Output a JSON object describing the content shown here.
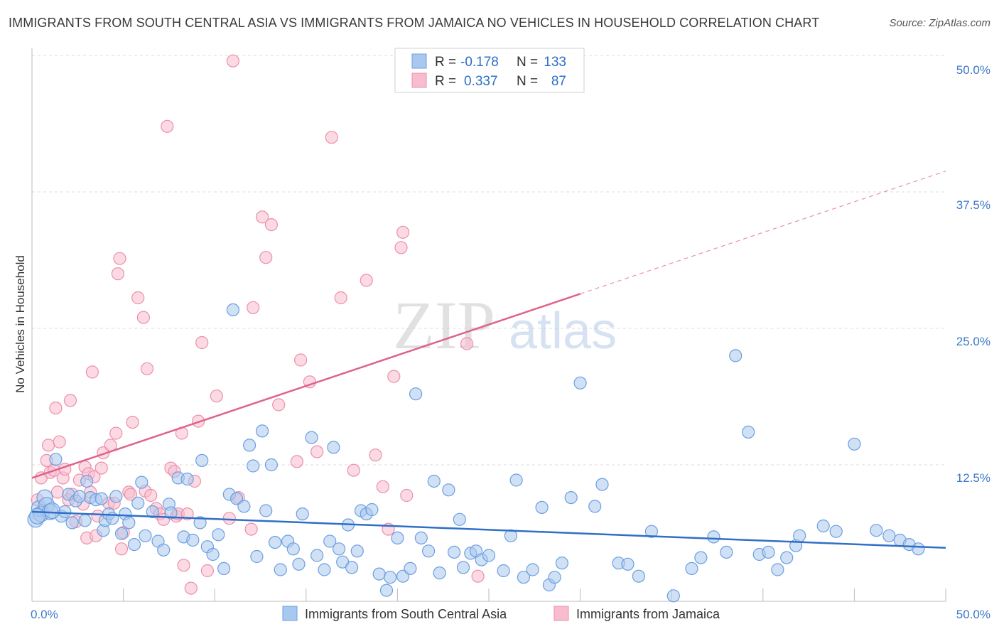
{
  "header": {
    "title": "IMMIGRANTS FROM SOUTH CENTRAL ASIA VS IMMIGRANTS FROM JAMAICA NO VEHICLES IN HOUSEHOLD CORRELATION CHART",
    "source": "Source: ZipAtlas.com"
  },
  "watermark": {
    "zip": "ZIP",
    "atlas": "atlas"
  },
  "colors": {
    "blue_fill": "#a9c8ef",
    "blue_stroke": "#6a9fe0",
    "blue_line": "#2f6fc6",
    "pink_fill": "#f7bccd",
    "pink_stroke": "#ec8fab",
    "pink_line": "#e0628a",
    "tick_text": "#3d78c8",
    "grid": "#dcdcdc"
  },
  "legend": {
    "rows": [
      {
        "r_label": "R =",
        "r_value": "-0.178",
        "n_label": "N =",
        "n_value": "133",
        "series": "blue"
      },
      {
        "r_label": "R =",
        "r_value": "0.337",
        "n_label": "N =",
        "n_value": "87",
        "series": "pink"
      }
    ]
  },
  "chart_data": {
    "type": "scatter",
    "title": "IMMIGRANTS FROM SOUTH CENTRAL ASIA VS IMMIGRANTS FROM JAMAICA NO VEHICLES IN HOUSEHOLD CORRELATION CHART",
    "ylabel": "No Vehicles in Household",
    "xlim": [
      0,
      50
    ],
    "ylim": [
      0,
      50
    ],
    "x_tick_labels": [
      "0.0%",
      "50.0%"
    ],
    "y_tick_labels": [
      "12.5%",
      "25.0%",
      "37.5%",
      "50.0%"
    ],
    "y_ticks": [
      12.5,
      25.0,
      37.5,
      50.0
    ],
    "grid": true,
    "legend_position": "top-center",
    "series": [
      {
        "name": "Immigrants from South Central Asia",
        "color": "blue",
        "R": -0.178,
        "N": 133,
        "trend": {
          "x0": 0,
          "y0": 8.2,
          "x1": 50,
          "y1": 4.9,
          "dashed_from": null
        },
        "points": [
          [
            0.2,
            7.5
          ],
          [
            0.4,
            8.5
          ],
          [
            0.5,
            8.0
          ],
          [
            0.7,
            9.5
          ],
          [
            0.8,
            8.8
          ],
          [
            1.0,
            8.2
          ],
          [
            1.3,
            13.0
          ],
          [
            1.6,
            7.8
          ],
          [
            1.8,
            8.2
          ],
          [
            2.0,
            9.8
          ],
          [
            2.2,
            7.2
          ],
          [
            2.4,
            9.2
          ],
          [
            2.6,
            9.6
          ],
          [
            3.0,
            11.0
          ],
          [
            3.2,
            9.5
          ],
          [
            3.5,
            9.3
          ],
          [
            3.8,
            9.4
          ],
          [
            3.9,
            6.5
          ],
          [
            4.0,
            7.4
          ],
          [
            4.2,
            8.0
          ],
          [
            4.4,
            7.6
          ],
          [
            4.6,
            9.6
          ],
          [
            4.9,
            6.2
          ],
          [
            5.1,
            8.0
          ],
          [
            5.3,
            7.2
          ],
          [
            5.6,
            5.2
          ],
          [
            5.8,
            9.0
          ],
          [
            6.0,
            10.9
          ],
          [
            6.2,
            6.0
          ],
          [
            6.6,
            8.2
          ],
          [
            6.9,
            5.5
          ],
          [
            7.2,
            4.7
          ],
          [
            7.5,
            8.9
          ],
          [
            7.6,
            8.1
          ],
          [
            8.0,
            11.3
          ],
          [
            8.3,
            5.9
          ],
          [
            8.5,
            11.2
          ],
          [
            8.8,
            5.6
          ],
          [
            9.2,
            7.2
          ],
          [
            9.3,
            12.9
          ],
          [
            9.6,
            5.0
          ],
          [
            9.9,
            4.3
          ],
          [
            10.2,
            6.1
          ],
          [
            10.5,
            3.0
          ],
          [
            10.8,
            9.8
          ],
          [
            11.0,
            26.7
          ],
          [
            11.2,
            9.4
          ],
          [
            11.6,
            8.7
          ],
          [
            11.9,
            14.3
          ],
          [
            12.1,
            12.4
          ],
          [
            12.3,
            4.1
          ],
          [
            12.6,
            15.6
          ],
          [
            12.8,
            8.3
          ],
          [
            13.1,
            12.5
          ],
          [
            13.3,
            5.4
          ],
          [
            13.6,
            2.9
          ],
          [
            14.0,
            5.5
          ],
          [
            14.3,
            4.8
          ],
          [
            14.6,
            3.4
          ],
          [
            14.8,
            8.0
          ],
          [
            15.3,
            15.0
          ],
          [
            15.6,
            4.2
          ],
          [
            16.0,
            2.9
          ],
          [
            16.3,
            5.5
          ],
          [
            16.5,
            14.1
          ],
          [
            16.8,
            4.8
          ],
          [
            17.0,
            3.6
          ],
          [
            17.3,
            7.0
          ],
          [
            17.5,
            3.1
          ],
          [
            17.8,
            4.6
          ],
          [
            18.0,
            8.3
          ],
          [
            18.3,
            8.0
          ],
          [
            18.6,
            8.4
          ],
          [
            19.0,
            2.5
          ],
          [
            19.4,
            1.0
          ],
          [
            19.6,
            2.2
          ],
          [
            20.0,
            5.8
          ],
          [
            20.3,
            2.3
          ],
          [
            20.7,
            3.0
          ],
          [
            21.0,
            19.0
          ],
          [
            21.3,
            5.8
          ],
          [
            21.7,
            4.6
          ],
          [
            22.0,
            11.0
          ],
          [
            22.3,
            2.6
          ],
          [
            22.8,
            10.2
          ],
          [
            23.1,
            4.5
          ],
          [
            23.4,
            7.5
          ],
          [
            23.6,
            3.1
          ],
          [
            24.0,
            4.4
          ],
          [
            24.3,
            4.6
          ],
          [
            24.6,
            3.8
          ],
          [
            25.0,
            4.2
          ],
          [
            25.8,
            2.8
          ],
          [
            26.2,
            6.0
          ],
          [
            26.5,
            11.1
          ],
          [
            26.9,
            2.2
          ],
          [
            27.4,
            2.9
          ],
          [
            27.9,
            8.6
          ],
          [
            28.3,
            1.5
          ],
          [
            28.6,
            2.2
          ],
          [
            29.0,
            3.5
          ],
          [
            29.5,
            9.5
          ],
          [
            30.0,
            20.0
          ],
          [
            30.8,
            8.7
          ],
          [
            31.2,
            10.7
          ],
          [
            32.1,
            3.5
          ],
          [
            32.6,
            3.4
          ],
          [
            33.2,
            2.3
          ],
          [
            33.9,
            6.4
          ],
          [
            35.1,
            0.5
          ],
          [
            36.1,
            3.0
          ],
          [
            36.6,
            4.0
          ],
          [
            37.3,
            5.9
          ],
          [
            38.0,
            4.5
          ],
          [
            38.5,
            22.5
          ],
          [
            39.2,
            15.5
          ],
          [
            39.8,
            4.3
          ],
          [
            40.3,
            4.5
          ],
          [
            40.8,
            2.9
          ],
          [
            41.3,
            4.0
          ],
          [
            41.8,
            5.1
          ],
          [
            42.0,
            6.0
          ],
          [
            43.3,
            6.9
          ],
          [
            44.0,
            6.4
          ],
          [
            45.0,
            14.4
          ],
          [
            46.2,
            6.5
          ],
          [
            46.9,
            6.0
          ],
          [
            47.5,
            5.6
          ],
          [
            48.0,
            5.2
          ],
          [
            48.5,
            4.8
          ],
          [
            0.3,
            7.8
          ],
          [
            1.1,
            8.3
          ],
          [
            2.9,
            7.4
          ]
        ]
      },
      {
        "name": "Immigrants from Jamaica",
        "color": "pink",
        "R": 0.337,
        "N": 87,
        "trend": {
          "x0": 0,
          "y0": 11.3,
          "x1": 50,
          "y1": 39.4,
          "dashed_from": 30.0
        },
        "points": [
          [
            0.3,
            9.3
          ],
          [
            0.5,
            11.3
          ],
          [
            0.6,
            8.3
          ],
          [
            0.8,
            12.9
          ],
          [
            0.9,
            14.3
          ],
          [
            1.0,
            11.8
          ],
          [
            1.2,
            12.0
          ],
          [
            1.3,
            17.7
          ],
          [
            1.5,
            14.6
          ],
          [
            1.7,
            11.3
          ],
          [
            1.8,
            12.1
          ],
          [
            2.0,
            9.3
          ],
          [
            2.1,
            18.4
          ],
          [
            2.2,
            9.8
          ],
          [
            2.4,
            7.3
          ],
          [
            2.6,
            11.1
          ],
          [
            2.8,
            8.9
          ],
          [
            2.9,
            12.3
          ],
          [
            3.0,
            5.8
          ],
          [
            3.1,
            11.7
          ],
          [
            3.2,
            10.0
          ],
          [
            3.3,
            21.0
          ],
          [
            3.4,
            11.4
          ],
          [
            3.5,
            6.0
          ],
          [
            3.6,
            7.8
          ],
          [
            3.8,
            12.2
          ],
          [
            3.9,
            13.6
          ],
          [
            4.2,
            9.0
          ],
          [
            4.3,
            14.3
          ],
          [
            4.5,
            9.0
          ],
          [
            4.6,
            15.4
          ],
          [
            4.7,
            30.0
          ],
          [
            4.8,
            31.4
          ],
          [
            4.9,
            4.8
          ],
          [
            5.0,
            6.3
          ],
          [
            5.3,
            10.0
          ],
          [
            5.4,
            9.8
          ],
          [
            5.5,
            16.4
          ],
          [
            5.8,
            27.8
          ],
          [
            6.1,
            26.0
          ],
          [
            6.2,
            10.1
          ],
          [
            6.3,
            21.3
          ],
          [
            6.5,
            9.7
          ],
          [
            6.8,
            8.5
          ],
          [
            7.0,
            8.0
          ],
          [
            7.2,
            7.5
          ],
          [
            7.4,
            43.5
          ],
          [
            7.6,
            12.2
          ],
          [
            7.8,
            11.9
          ],
          [
            7.9,
            7.8
          ],
          [
            8.0,
            8.0
          ],
          [
            8.2,
            15.4
          ],
          [
            8.3,
            3.3
          ],
          [
            8.5,
            8.0
          ],
          [
            8.7,
            1.2
          ],
          [
            8.9,
            11.0
          ],
          [
            9.1,
            16.5
          ],
          [
            9.3,
            23.7
          ],
          [
            9.6,
            2.8
          ],
          [
            10.1,
            18.8
          ],
          [
            10.8,
            7.6
          ],
          [
            11.0,
            49.5
          ],
          [
            11.3,
            9.5
          ],
          [
            12.0,
            6.6
          ],
          [
            12.1,
            26.9
          ],
          [
            12.6,
            35.2
          ],
          [
            12.8,
            31.5
          ],
          [
            13.1,
            34.5
          ],
          [
            13.5,
            18.0
          ],
          [
            14.5,
            12.8
          ],
          [
            14.7,
            22.1
          ],
          [
            15.2,
            20.1
          ],
          [
            15.6,
            13.7
          ],
          [
            16.4,
            42.5
          ],
          [
            16.9,
            27.8
          ],
          [
            17.6,
            12.0
          ],
          [
            18.3,
            29.4
          ],
          [
            18.8,
            13.4
          ],
          [
            19.2,
            10.5
          ],
          [
            19.5,
            6.6
          ],
          [
            19.8,
            20.6
          ],
          [
            20.2,
            32.4
          ],
          [
            20.3,
            33.8
          ],
          [
            20.5,
            9.7
          ],
          [
            23.8,
            23.6
          ],
          [
            24.4,
            2.3
          ],
          [
            1.4,
            10.0
          ]
        ]
      }
    ]
  },
  "bottom_legend": {
    "items": [
      {
        "label": "Immigrants from South Central Asia",
        "series": "blue"
      },
      {
        "label": "Immigrants from Jamaica",
        "series": "pink"
      }
    ]
  }
}
